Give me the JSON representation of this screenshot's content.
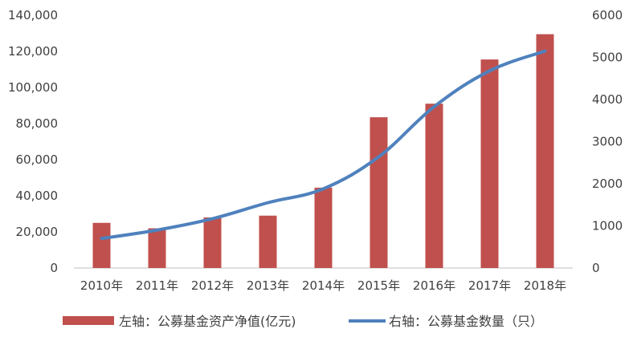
{
  "chart_data": {
    "type": "bar+line",
    "categories": [
      "2010年",
      "2011年",
      "2012年",
      "2013年",
      "2014年",
      "2015年",
      "2016年",
      "2017年",
      "2018年"
    ],
    "series": [
      {
        "name": "左轴：公募基金资产净值(亿元)",
        "type": "bar",
        "axis": "left",
        "color": "#C0504D",
        "values": [
          25000,
          22000,
          28000,
          29000,
          44500,
          83500,
          91000,
          115500,
          129500
        ]
      },
      {
        "name": "右轴：公募基金数量（只）",
        "type": "line",
        "axis": "right",
        "color": "#4F81BD",
        "values": [
          700,
          900,
          1170,
          1550,
          1880,
          2640,
          3830,
          4680,
          5150
        ]
      }
    ],
    "left_axis": {
      "ylim": [
        0,
        140000
      ],
      "ticks": [
        0,
        20000,
        40000,
        60000,
        80000,
        100000,
        120000,
        140000
      ],
      "tick_labels": [
        "0",
        "20,000",
        "40,000",
        "60,000",
        "80,000",
        "100,000",
        "120,000",
        "140,000"
      ]
    },
    "right_axis": {
      "ylim": [
        0,
        6000
      ],
      "ticks": [
        0,
        1000,
        2000,
        3000,
        4000,
        5000,
        6000
      ],
      "tick_labels": [
        "0",
        "1000",
        "2000",
        "3000",
        "4000",
        "5000",
        "6000"
      ]
    },
    "grid": false,
    "legend_position": "bottom"
  }
}
